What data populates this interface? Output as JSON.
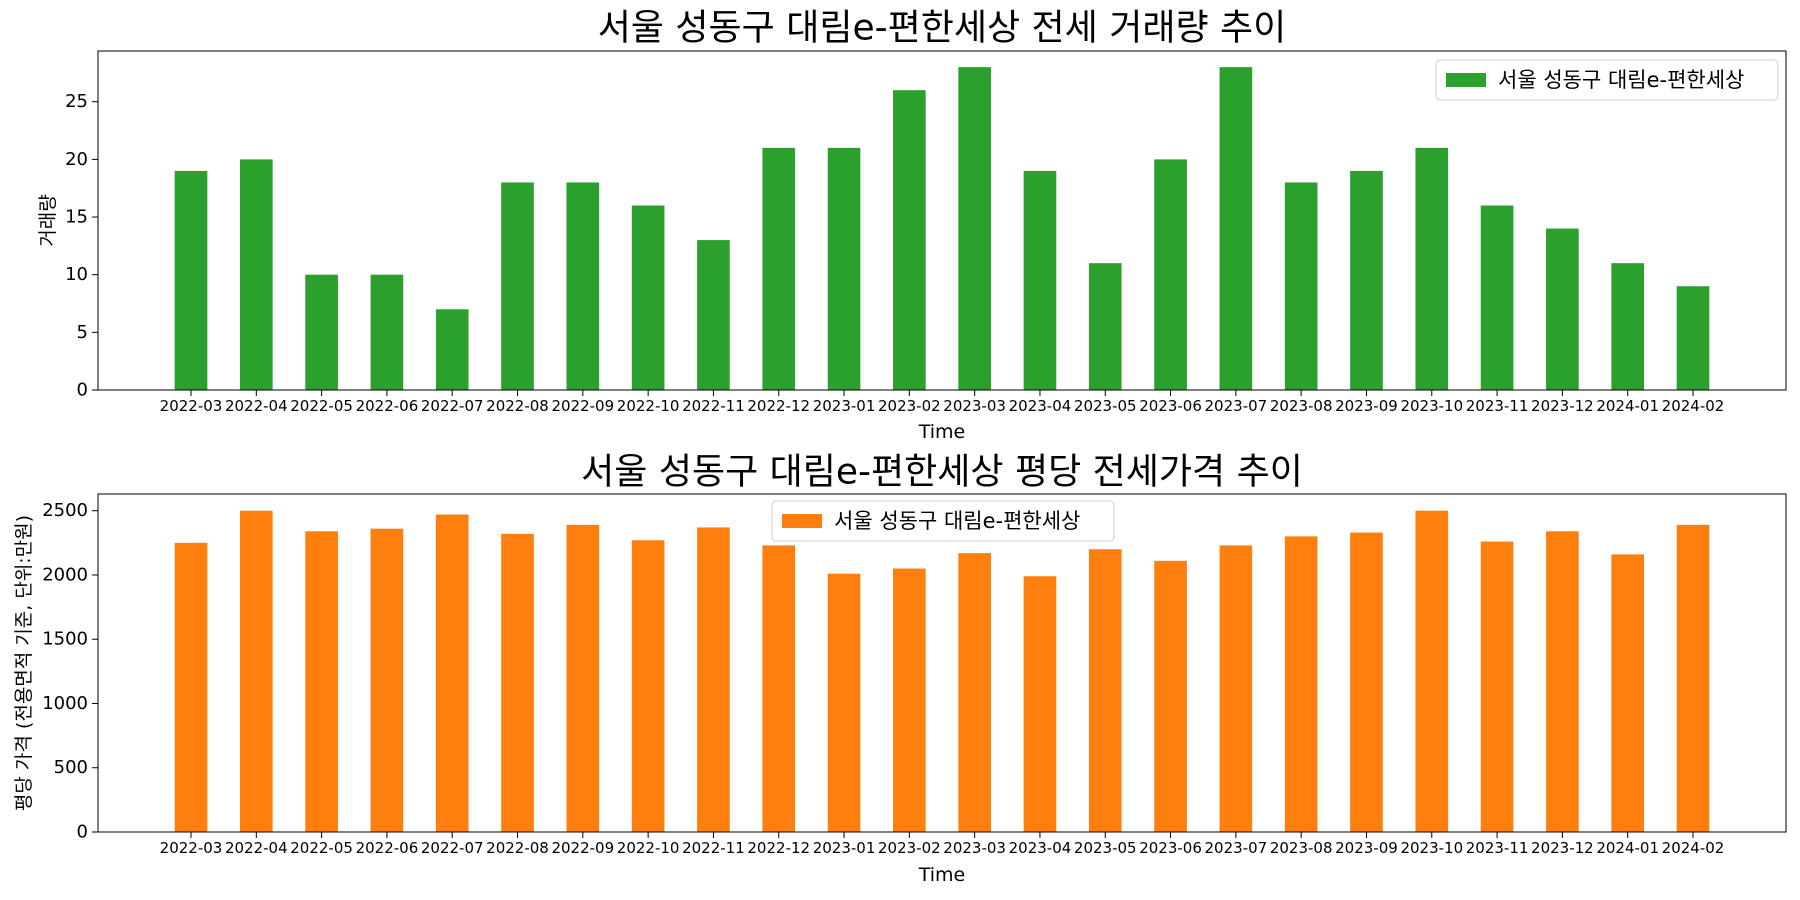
{
  "chart_data": [
    {
      "type": "bar",
      "title": "서울 성동구 대림e-편한세상 전세 거래량 추이",
      "xlabel": "Time",
      "ylabel": "거래량",
      "ylim": [
        0,
        29.4
      ],
      "yticks": [
        0,
        5,
        10,
        15,
        20,
        25
      ],
      "grid": false,
      "legend_position": "top-right",
      "color": "#2ca02c",
      "categories": [
        "2022-03",
        "2022-04",
        "2022-05",
        "2022-06",
        "2022-07",
        "2022-08",
        "2022-09",
        "2022-10",
        "2022-11",
        "2022-12",
        "2023-01",
        "2023-02",
        "2023-03",
        "2023-04",
        "2023-05",
        "2023-06",
        "2023-07",
        "2023-08",
        "2023-09",
        "2023-10",
        "2023-11",
        "2023-12",
        "2024-01",
        "2024-02"
      ],
      "series": [
        {
          "name": "서울 성동구 대림e-편한세상",
          "values": [
            19,
            20,
            10,
            10,
            7,
            18,
            18,
            16,
            13,
            21,
            21,
            26,
            28,
            19,
            11,
            20,
            28,
            18,
            19,
            21,
            16,
            14,
            11,
            9
          ]
        }
      ]
    },
    {
      "type": "bar",
      "title": "서울 성동구 대림e-편한세상 평당 전세가격 추이",
      "xlabel": "Time",
      "ylabel": "평당 가격 (전용면적 기준, 단위:만원)",
      "ylim": [
        0,
        2630
      ],
      "yticks": [
        0,
        500,
        1000,
        1500,
        2000,
        2500
      ],
      "grid": false,
      "legend_position": "top-center",
      "color": "#ff7f0e",
      "categories": [
        "2022-03",
        "2022-04",
        "2022-05",
        "2022-06",
        "2022-07",
        "2022-08",
        "2022-09",
        "2022-10",
        "2022-11",
        "2022-12",
        "2023-01",
        "2023-02",
        "2023-03",
        "2023-04",
        "2023-05",
        "2023-06",
        "2023-07",
        "2023-08",
        "2023-09",
        "2023-10",
        "2023-11",
        "2023-12",
        "2024-01",
        "2024-02"
      ],
      "series": [
        {
          "name": "서울 성동구 대림e-편한세상",
          "values": [
            2250,
            2500,
            2340,
            2360,
            2470,
            2320,
            2390,
            2270,
            2370,
            2230,
            2010,
            2050,
            2170,
            1990,
            2200,
            2110,
            2230,
            2300,
            2330,
            2500,
            2260,
            2340,
            2160,
            2390
          ]
        }
      ]
    }
  ]
}
